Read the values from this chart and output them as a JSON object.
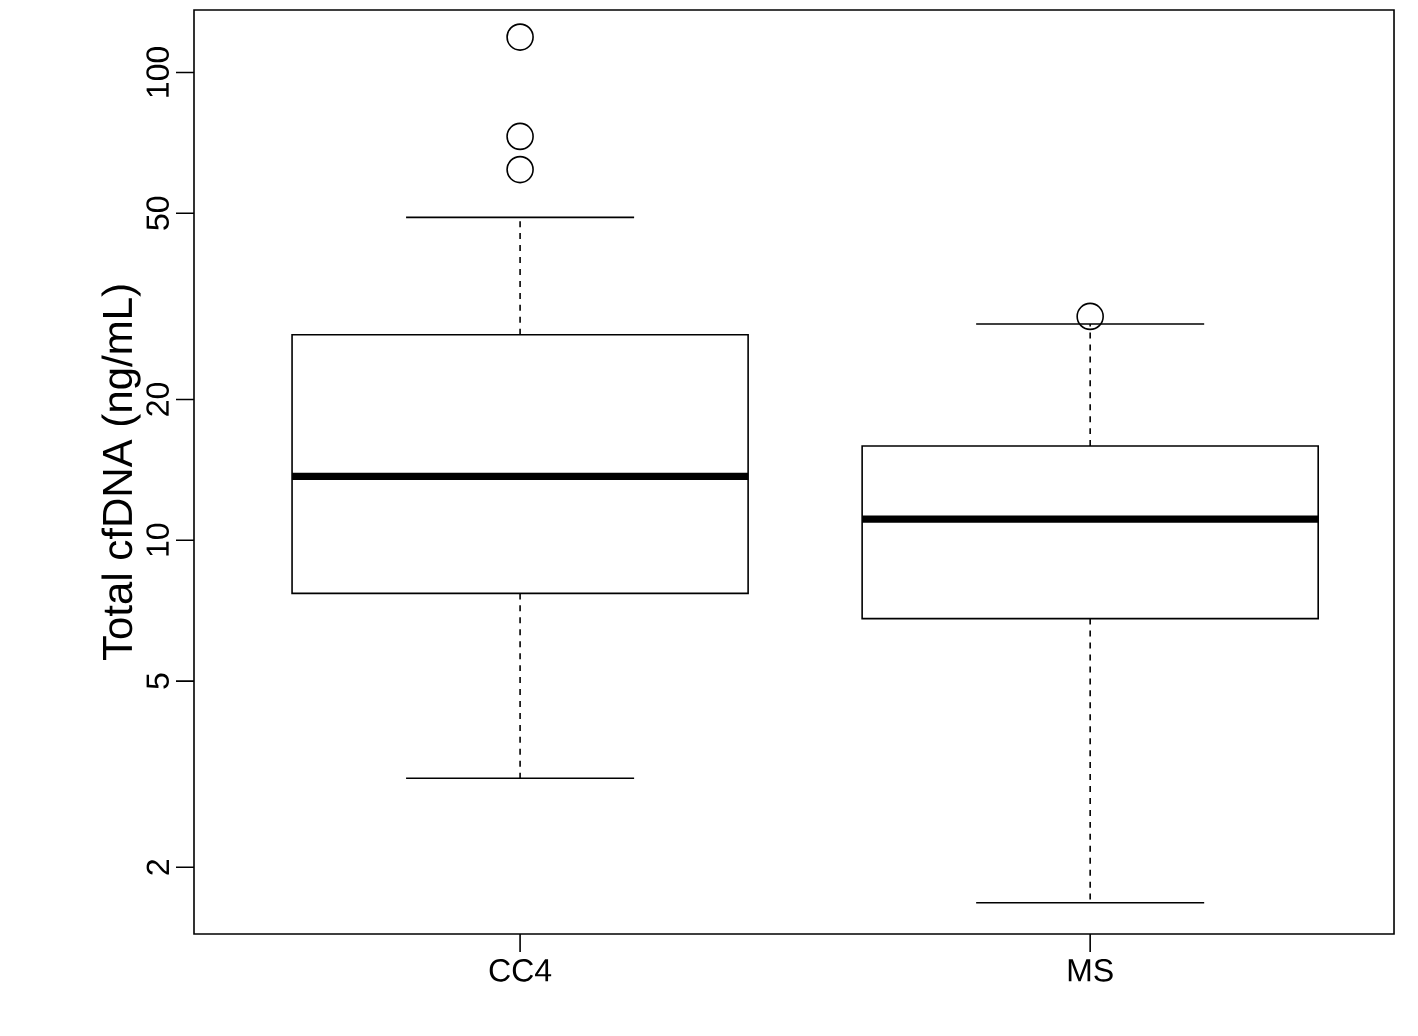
{
  "chart_data": {
    "type": "box",
    "ylabel": "Total cfDNA (ng/mL)",
    "categories": [
      "CC4",
      "MS"
    ],
    "color": "#000000",
    "log": true,
    "ylim": [
      1.44,
      136
    ],
    "yticks": [
      2,
      5,
      10,
      20,
      50,
      100
    ],
    "boxes": [
      {
        "low": 3.1,
        "q1": 7.7,
        "median": 13.7,
        "q3": 27.5,
        "high": 49,
        "outliers": [
          62,
          73,
          119
        ]
      },
      {
        "low": 1.68,
        "q1": 6.8,
        "median": 11.1,
        "q3": 15.9,
        "high": 29,
        "outliers": [
          30.1
        ]
      }
    ]
  }
}
